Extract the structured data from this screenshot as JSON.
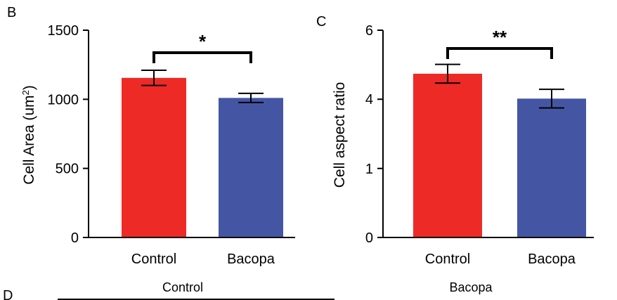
{
  "panels": {
    "left_letter": "B",
    "right_letter": "C",
    "lower_letter": "D"
  },
  "chart_data": [
    {
      "type": "bar",
      "panel": "B",
      "categories": [
        "Control",
        "Bacopa"
      ],
      "values": [
        1155,
        1010
      ],
      "errors": [
        55,
        33
      ],
      "colors": [
        "#ee2a26",
        "#4456a3"
      ],
      "ylabel_main": "Cell Area (um",
      "ylabel_sup": "2",
      "ylabel_end": ")",
      "ylim": [
        0,
        1500
      ],
      "yticks": [
        0,
        500,
        1000,
        1500
      ],
      "significance": "*",
      "grid": false
    },
    {
      "type": "bar",
      "panel": "C",
      "categories": [
        "Control",
        "Bacopa"
      ],
      "ytick_labels": [
        "0",
        "1",
        "4",
        "6"
      ],
      "ytick_fracs": [
        0,
        0.333,
        0.667,
        1
      ],
      "value_fracs": [
        0.79,
        0.67
      ],
      "error_fracs": [
        0.045,
        0.045
      ],
      "colors": [
        "#ee2a26",
        "#4456a3"
      ],
      "ylabel": "Cell aspect ratio",
      "significance": "**",
      "grid": false
    }
  ],
  "bottom_labels": {
    "left": "Control",
    "right": "Bacopa"
  }
}
